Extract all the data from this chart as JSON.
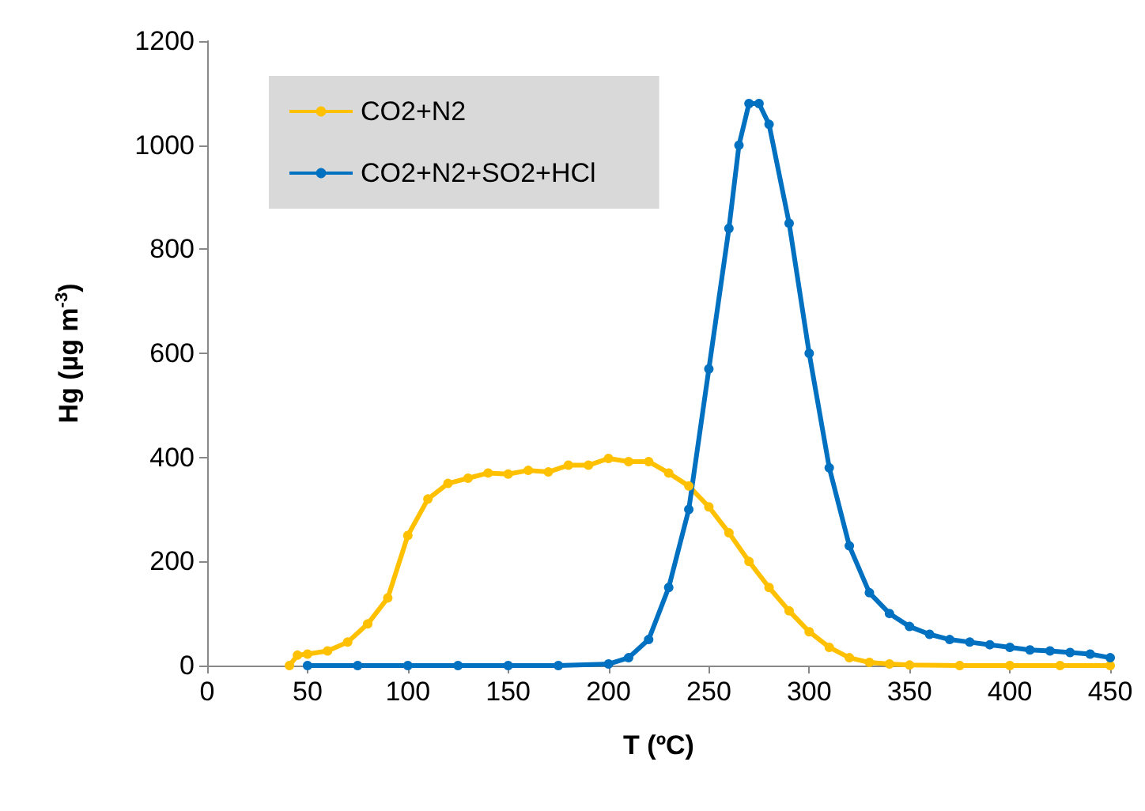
{
  "chart_data": {
    "type": "line",
    "xlabel": "T (ºC)",
    "ylabel": "Hg (µg m$^{-3}$)",
    "xlim": [
      0,
      450
    ],
    "xticks": [
      0,
      50,
      100,
      150,
      200,
      250,
      300,
      350,
      400,
      450
    ],
    "ylim": [
      0,
      1200
    ],
    "yticks": [
      0,
      200,
      400,
      600,
      800,
      1000,
      1200
    ],
    "grid": false,
    "legend": "top left",
    "marker": "circle",
    "line_style": "solid",
    "series": [
      {
        "name": "CO2+N2",
        "color": "#ffc000",
        "x": [
          41,
          45,
          50,
          60,
          70,
          80,
          90,
          100,
          110,
          120,
          130,
          140,
          150,
          160,
          170,
          180,
          190,
          200,
          210,
          220,
          230,
          240,
          250,
          260,
          270,
          280,
          290,
          300,
          310,
          320,
          330,
          340,
          350,
          375,
          400,
          425,
          450
        ],
        "values": [
          0,
          20,
          22,
          28,
          45,
          80,
          130,
          250,
          320,
          350,
          360,
          370,
          368,
          375,
          372,
          385,
          385,
          398,
          392,
          392,
          370,
          345,
          305,
          255,
          200,
          150,
          105,
          65,
          35,
          15,
          6,
          3,
          1,
          0,
          0,
          0,
          0
        ]
      },
      {
        "name": "CO2+N2+SO2+HCl",
        "color": "#0070c0",
        "x": [
          50,
          75,
          100,
          125,
          150,
          175,
          200,
          210,
          220,
          230,
          240,
          250,
          260,
          265,
          270,
          275,
          280,
          290,
          300,
          310,
          320,
          330,
          340,
          350,
          360,
          370,
          380,
          390,
          400,
          410,
          420,
          430,
          440,
          450
        ],
        "values": [
          0,
          0,
          0,
          0,
          0,
          0,
          3,
          15,
          50,
          150,
          300,
          570,
          840,
          1000,
          1080,
          1080,
          1040,
          850,
          600,
          380,
          230,
          140,
          100,
          75,
          60,
          50,
          45,
          40,
          35,
          30,
          28,
          25,
          22,
          15
        ]
      }
    ]
  }
}
